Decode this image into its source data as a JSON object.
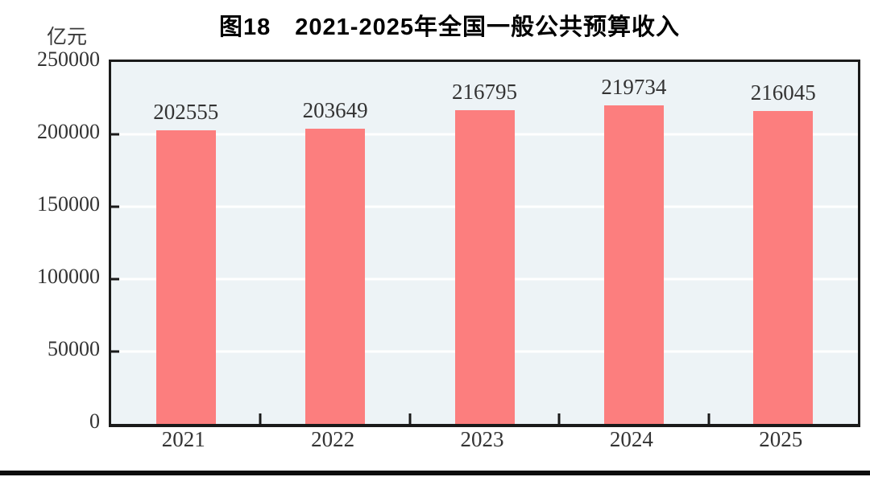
{
  "chart_data": {
    "type": "bar",
    "title": "图18　2021-2025年全国一般公共预算收入",
    "unit_label": "亿元",
    "categories": [
      "2021",
      "2022",
      "2023",
      "2024",
      "2025"
    ],
    "values": [
      202555,
      203649,
      216795,
      219734,
      216045
    ],
    "xlabel": "",
    "ylabel": "亿元",
    "ylim": [
      0,
      250000
    ],
    "yticks": [
      0,
      50000,
      100000,
      150000,
      200000,
      250000
    ],
    "grid": "horizontal-white-gridlines",
    "legend": "none",
    "colors": {
      "bar": "#FC7E7E",
      "plot_background": "#EDF3F6",
      "gridline": "#FFFFFF",
      "axis": "#1A1A1A",
      "label_text": "#333333",
      "title_text": "#000000",
      "page_background": "#FFFFFF",
      "bottom_rule": "#0D0D0D"
    }
  }
}
